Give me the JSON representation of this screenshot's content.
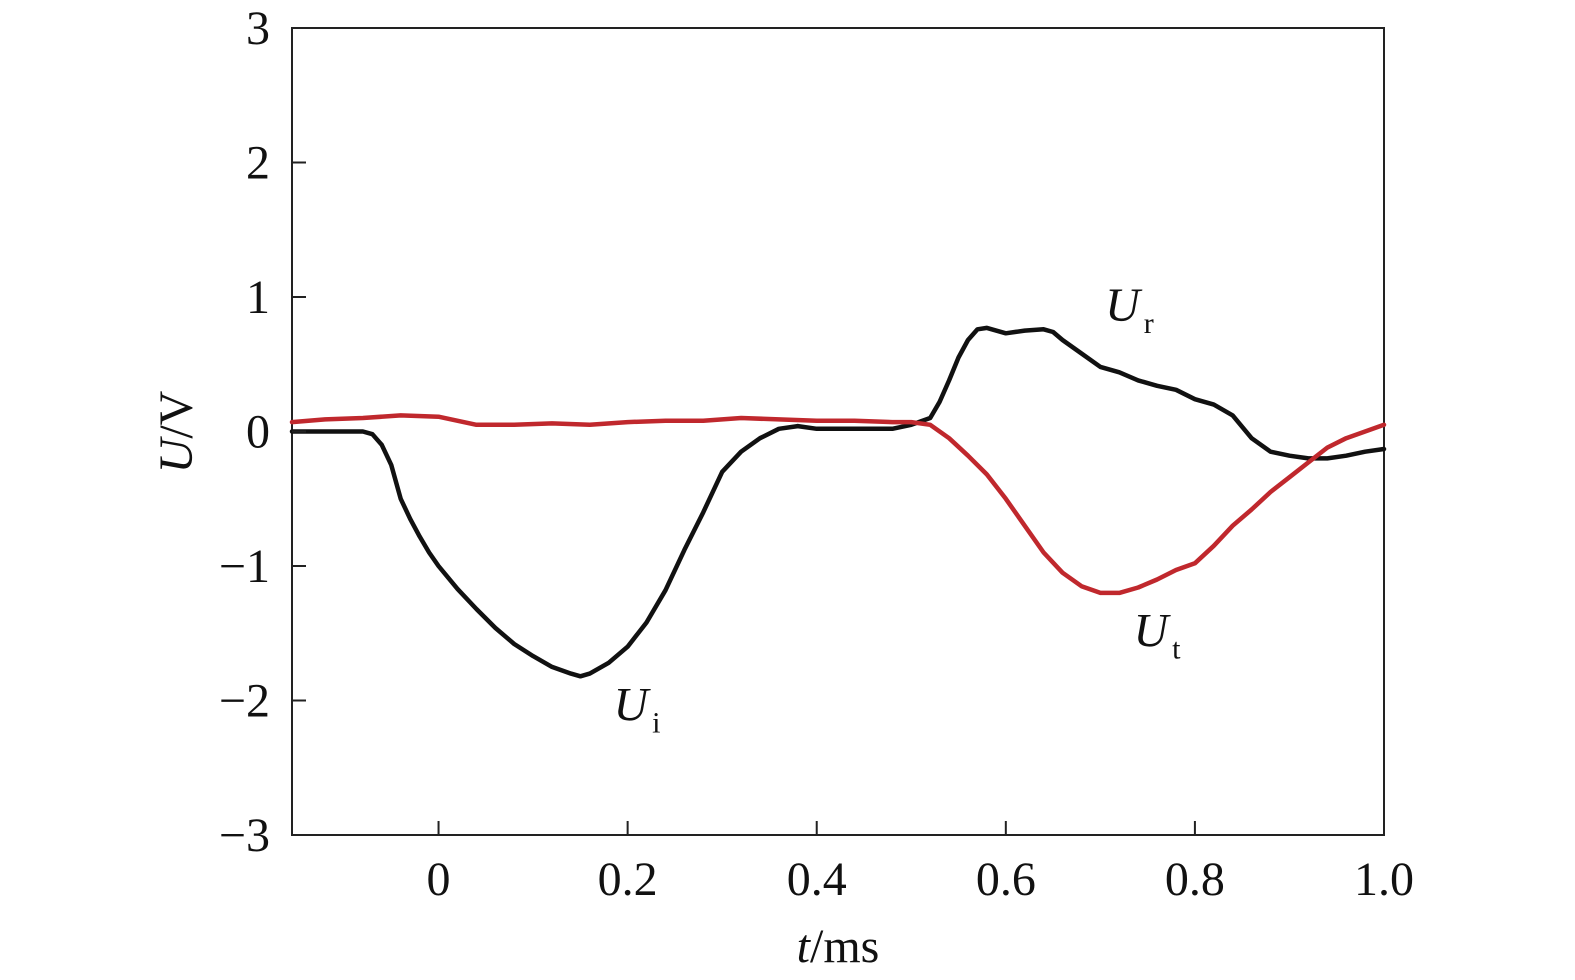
{
  "chart_data": {
    "type": "line",
    "title": "",
    "xlabel": {
      "var": "t",
      "unit": "/ms"
    },
    "ylabel": {
      "var": "U",
      "unit": "/V"
    },
    "xlim": [
      -0.155,
      1.0
    ],
    "ylim": [
      -3,
      3
    ],
    "xticks": [
      0,
      0.2,
      0.4,
      0.6,
      0.8,
      1.0
    ],
    "xtick_labels": [
      "0",
      "0.2",
      "0.4",
      "0.6",
      "0.8",
      "1.0"
    ],
    "yticks": [
      -3,
      -2,
      -1,
      0,
      1,
      2,
      3
    ],
    "ytick_labels": [
      "−3",
      "−2",
      "−1",
      "0",
      "1",
      "2",
      "3"
    ],
    "grid": false,
    "series": [
      {
        "name_main": "U",
        "name_sub": "i",
        "color": "#111111",
        "x": [
          -0.155,
          -0.13,
          -0.1,
          -0.08,
          -0.07,
          -0.06,
          -0.05,
          -0.04,
          -0.03,
          -0.02,
          -0.01,
          0.0,
          0.02,
          0.04,
          0.06,
          0.08,
          0.1,
          0.12,
          0.14,
          0.15,
          0.16,
          0.18,
          0.2,
          0.22,
          0.24,
          0.26,
          0.28,
          0.3,
          0.32,
          0.34,
          0.36,
          0.38
        ],
        "y": [
          0.0,
          0.0,
          0.0,
          0.0,
          -0.02,
          -0.1,
          -0.25,
          -0.5,
          -0.65,
          -0.78,
          -0.9,
          -1.0,
          -1.17,
          -1.32,
          -1.46,
          -1.58,
          -1.67,
          -1.75,
          -1.8,
          -1.82,
          -1.8,
          -1.72,
          -1.6,
          -1.42,
          -1.18,
          -0.88,
          -0.6,
          -0.3,
          -0.15,
          -0.05,
          0.02,
          0.04
        ]
      },
      {
        "name_main": "U",
        "name_sub": "r",
        "color": "#111111",
        "x": [
          0.38,
          0.4,
          0.44,
          0.48,
          0.5,
          0.52,
          0.53,
          0.54,
          0.55,
          0.56,
          0.57,
          0.58,
          0.6,
          0.62,
          0.64,
          0.65,
          0.66,
          0.68,
          0.7,
          0.72,
          0.74,
          0.76,
          0.78,
          0.8,
          0.82,
          0.84,
          0.86,
          0.88,
          0.9,
          0.92,
          0.94,
          0.96,
          0.98,
          1.0
        ],
        "y": [
          0.04,
          0.02,
          0.02,
          0.02,
          0.05,
          0.1,
          0.22,
          0.38,
          0.55,
          0.68,
          0.76,
          0.77,
          0.73,
          0.75,
          0.76,
          0.74,
          0.68,
          0.58,
          0.48,
          0.44,
          0.38,
          0.34,
          0.31,
          0.24,
          0.2,
          0.12,
          -0.05,
          -0.15,
          -0.18,
          -0.2,
          -0.2,
          -0.18,
          -0.15,
          -0.13
        ]
      },
      {
        "name_main": "U",
        "name_sub": "t",
        "color": "#c0282d",
        "x": [
          -0.155,
          -0.12,
          -0.08,
          -0.04,
          0.0,
          0.04,
          0.08,
          0.12,
          0.16,
          0.2,
          0.24,
          0.28,
          0.32,
          0.36,
          0.4,
          0.44,
          0.48,
          0.5,
          0.52,
          0.54,
          0.56,
          0.58,
          0.6,
          0.62,
          0.64,
          0.66,
          0.68,
          0.7,
          0.72,
          0.74,
          0.76,
          0.78,
          0.8,
          0.82,
          0.84,
          0.86,
          0.88,
          0.9,
          0.92,
          0.94,
          0.96,
          0.98,
          1.0
        ],
        "y": [
          0.07,
          0.09,
          0.1,
          0.12,
          0.11,
          0.05,
          0.05,
          0.06,
          0.05,
          0.07,
          0.08,
          0.08,
          0.1,
          0.09,
          0.08,
          0.08,
          0.07,
          0.07,
          0.05,
          -0.05,
          -0.18,
          -0.32,
          -0.5,
          -0.7,
          -0.9,
          -1.05,
          -1.15,
          -1.2,
          -1.2,
          -1.16,
          -1.1,
          -1.03,
          -0.98,
          -0.85,
          -0.7,
          -0.58,
          -0.45,
          -0.34,
          -0.23,
          -0.12,
          -0.05,
          0.0,
          0.05
        ]
      }
    ]
  }
}
